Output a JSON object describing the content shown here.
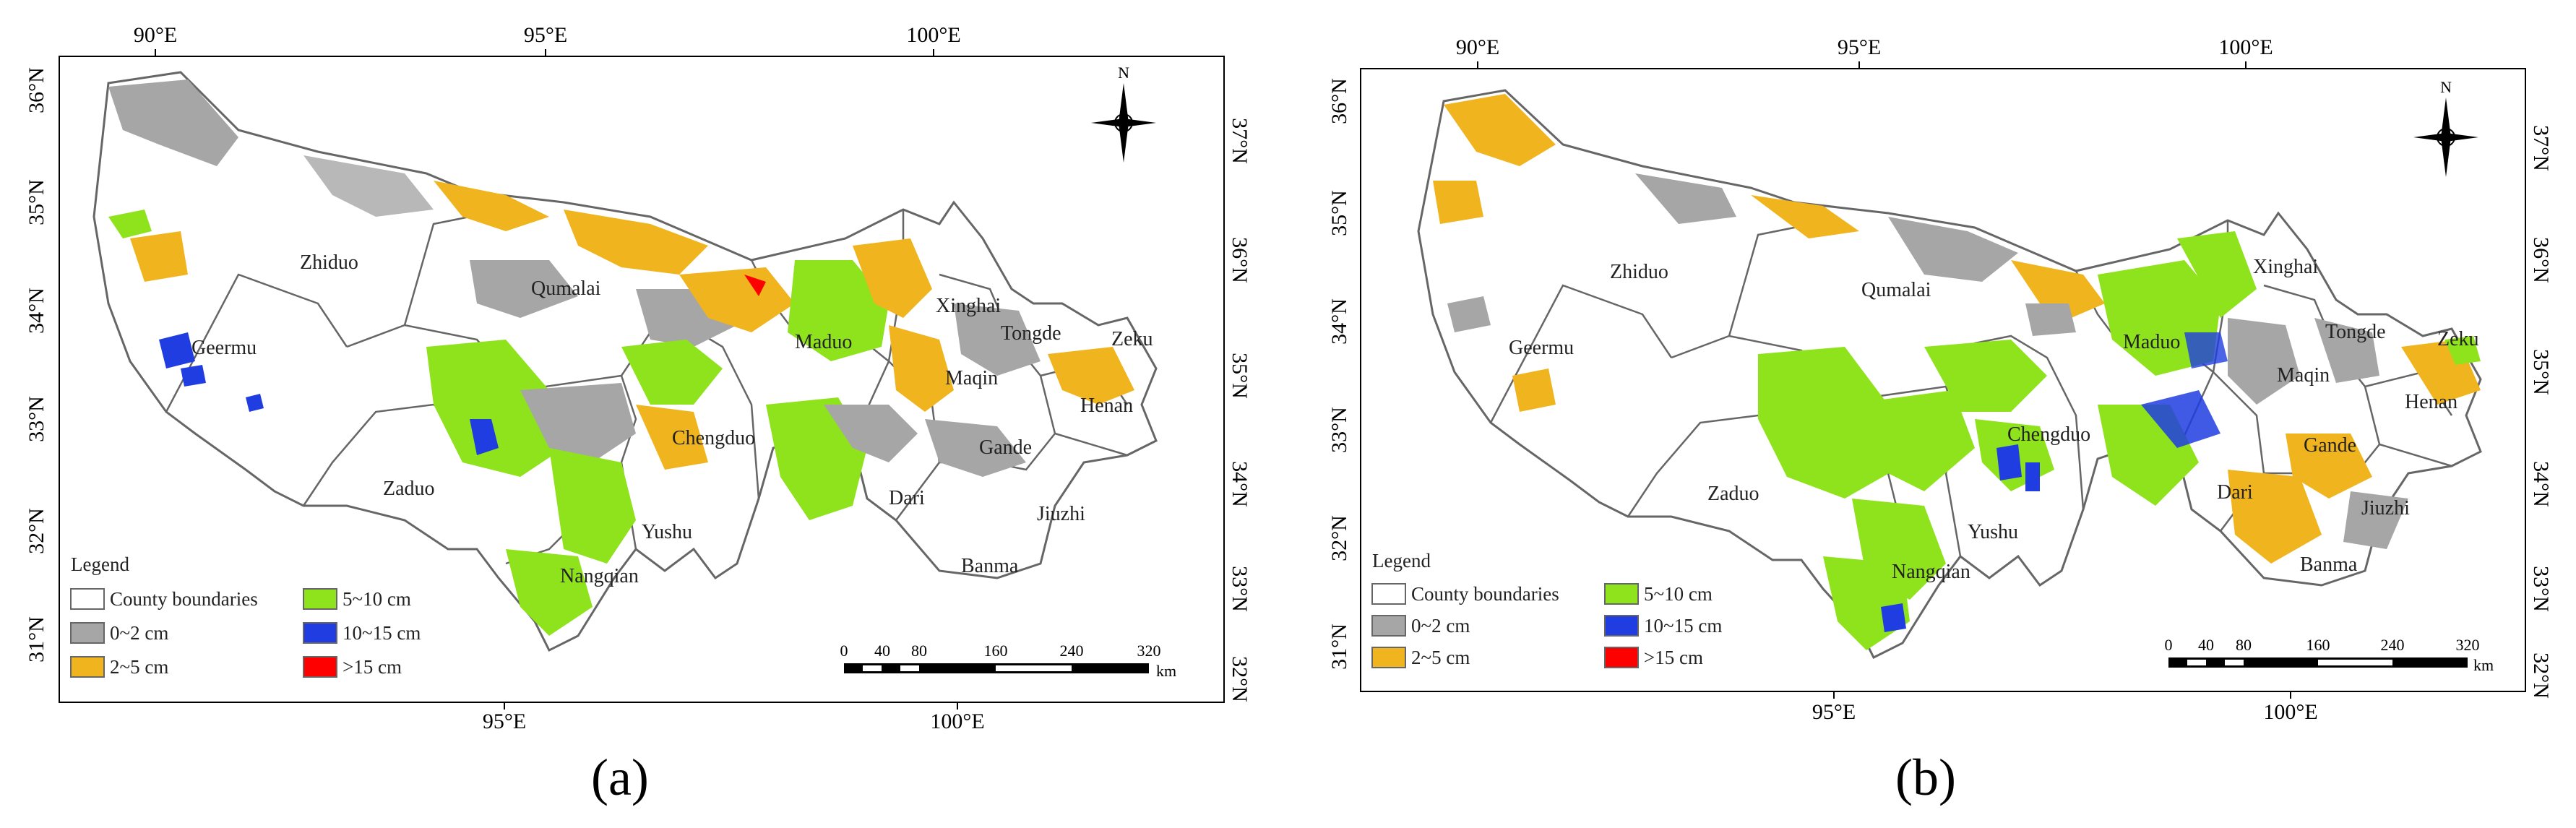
{
  "panels": [
    {
      "id": "a",
      "caption": "(a)",
      "top_ticks": [
        "90°E",
        "95°E",
        "100°E"
      ],
      "bottom_ticks": [
        "95°E",
        "100°E"
      ],
      "left_ticks": [
        "36°N",
        "35°N",
        "34°N",
        "33°N",
        "32°N",
        "31°N"
      ],
      "right_ticks": [
        "37°N",
        "36°N",
        "35°N",
        "34°N",
        "33°N",
        "32°N"
      ],
      "place_names": [
        "Zhiduo",
        "Qumalai",
        "Geermu",
        "Maduo",
        "Xinghai",
        "Tongde",
        "Zeku",
        "Maqin",
        "Henan",
        "Chengduo",
        "Gande",
        "Zaduo",
        "Dari",
        "Jiuzhi",
        "Yushu",
        "Banma",
        "Nangqian"
      ],
      "legend": {
        "title": "Legend",
        "items": [
          "County boundaries",
          "5~10 cm",
          "0~2 cm",
          "10~15 cm",
          "2~5 cm",
          ">15 cm"
        ]
      },
      "scale": {
        "labels": [
          "0",
          "40",
          "80",
          "160",
          "240",
          "320"
        ],
        "unit": "km"
      },
      "north_label": "N"
    },
    {
      "id": "b",
      "caption": "(b)",
      "top_ticks": [
        "90°E",
        "95°E",
        "100°E"
      ],
      "bottom_ticks": [
        "95°E",
        "100°E"
      ],
      "left_ticks": [
        "36°N",
        "35°N",
        "34°N",
        "33°N",
        "32°N",
        "31°N"
      ],
      "right_ticks": [
        "37°N",
        "36°N",
        "35°N",
        "34°N",
        "33°N",
        "32°N"
      ],
      "place_names": [
        "Zhiduo",
        "Qumalai",
        "Xinghai",
        "Geermu",
        "Tongde",
        "Zeku",
        "Maduo",
        "Maqin",
        "Henan",
        "Chengduo",
        "Gande",
        "Zaduo",
        "Dari",
        "Jiuzhi",
        "Yushu",
        "Banma",
        "Nangqian"
      ],
      "legend": {
        "title": "Legend",
        "items": [
          "County boundaries",
          "5~10 cm",
          "0~2 cm",
          "10~15 cm",
          "2~5 cm",
          ">15 cm"
        ]
      },
      "scale": {
        "labels": [
          "0",
          "40",
          "80",
          "160",
          "240",
          "320"
        ],
        "unit": "km"
      },
      "north_label": "N"
    }
  ],
  "colors": {
    "boundary": "#666666",
    "class_0_2": "#a6a6a6",
    "class_2_5": "#f0b41e",
    "class_5_10": "#8fe31c",
    "class_10_15": "#1f3de0",
    "class_gt15": "#ff0000"
  }
}
